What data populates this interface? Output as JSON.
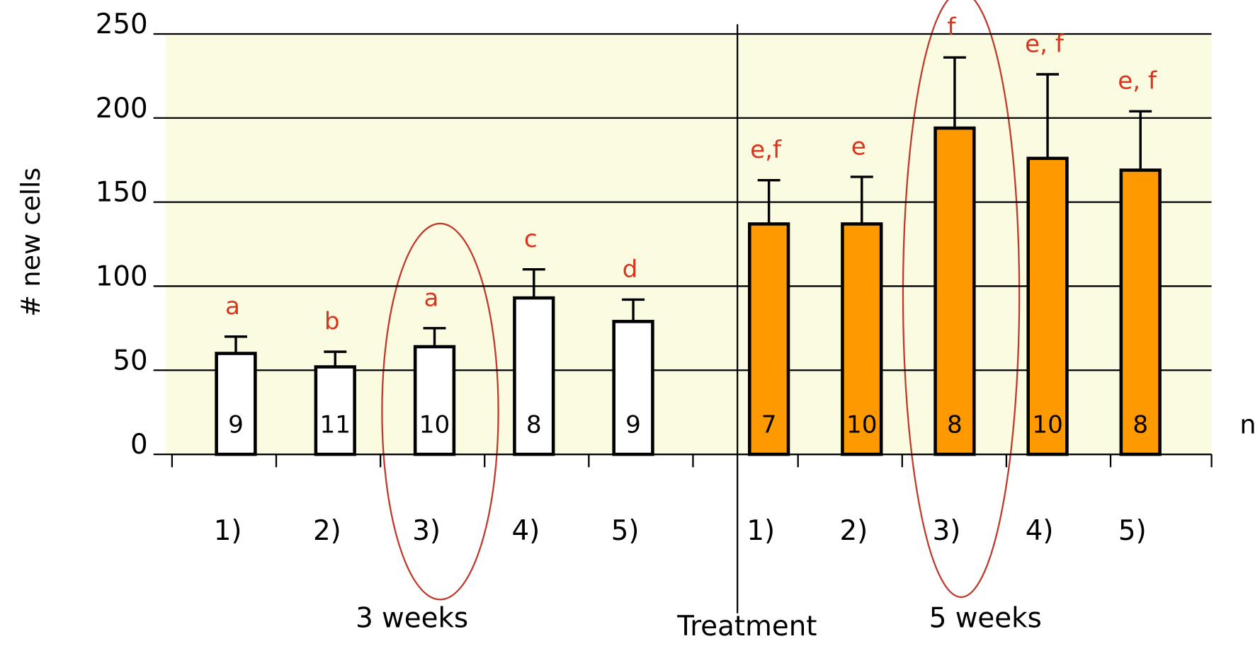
{
  "chart_data": {
    "type": "bar",
    "y_label": "# new cells",
    "ylim": [
      0,
      250
    ],
    "yticks": [
      0,
      50,
      100,
      150,
      200,
      250
    ],
    "grid": true,
    "n_label": "n",
    "x_title": "Treatment",
    "groups": [
      {
        "label": "3 weeks",
        "color": "#ffffff",
        "categories": [
          "1)",
          "2)",
          "3)",
          "4)",
          "5)"
        ],
        "values": [
          60,
          52,
          64,
          93,
          79
        ],
        "errors": [
          10,
          9,
          11,
          17,
          13
        ],
        "letters": [
          "a",
          "b",
          "a",
          "c",
          "d"
        ],
        "n": [
          9,
          11,
          10,
          8,
          9
        ]
      },
      {
        "label": "5 weeks",
        "color": "#ff9900",
        "categories": [
          "1)",
          "2)",
          "3)",
          "4)",
          "5)"
        ],
        "values": [
          137,
          137,
          194,
          176,
          169
        ],
        "errors": [
          26,
          28,
          42,
          50,
          35
        ],
        "letters": [
          "e,f",
          "e",
          "f",
          "e, f",
          "e, f"
        ],
        "n": [
          7,
          10,
          8,
          10,
          8
        ]
      }
    ]
  }
}
